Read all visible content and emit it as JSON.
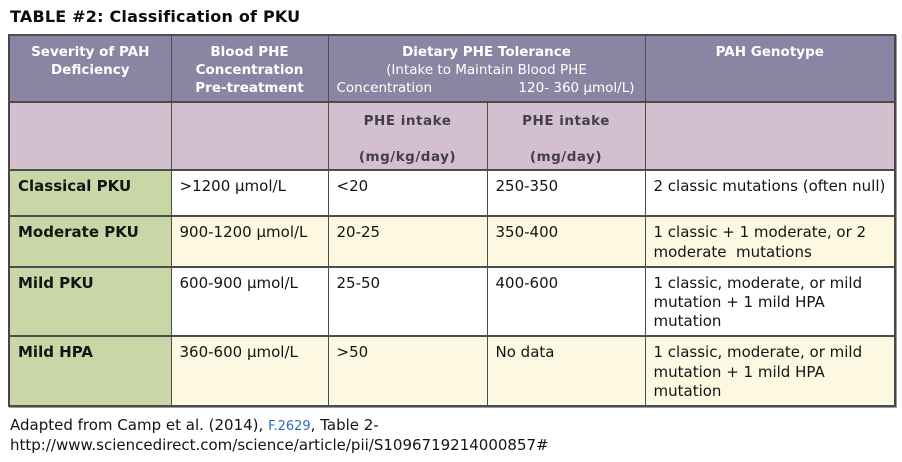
{
  "title": "TABLE #2: Classification of PKU",
  "colors": {
    "header_purple": "#8b85a3",
    "subheader_pink": "#d3c0ce",
    "severity_green": "#c9d7a6",
    "row_cream": "#fdf8e2",
    "row_white": "#ffffff",
    "border": "#4c4c4c",
    "link_blue": "#2e6fb7"
  },
  "table": {
    "header": {
      "severity": "Severity of PAH Deficiency",
      "blood_phe": "Blood PHE Concentration Pre-treatment",
      "dietary_title": "Dietary PHE Tolerance",
      "dietary_line2": "(Intake to Maintain Blood PHE",
      "dietary_line3_left": "Concentration",
      "dietary_line3_right": "120- 360 μmol/L)",
      "genotype": "PAH Genotype"
    },
    "subheader": {
      "intake_label_1": "PHE intake",
      "unit_1": "(mg/kg/day)",
      "intake_label_2": "PHE intake",
      "unit_2": "(mg/day)"
    },
    "rows": [
      {
        "severity": "Classical PKU",
        "blood_phe": ">1200 μmol/L",
        "intake_mg_kg_day": "<20",
        "intake_mg_day": "250-350",
        "genotype": "2 classic mutations (often null)"
      },
      {
        "severity": "Moderate PKU",
        "blood_phe": "900-1200 μmol/L",
        "intake_mg_kg_day": "20-25",
        "intake_mg_day": "350-400",
        "genotype": "1 classic + 1 moderate, or 2 moderate  mutations"
      },
      {
        "severity": "Mild PKU",
        "blood_phe": "600-900 μmol/L",
        "intake_mg_kg_day": "25-50",
        "intake_mg_day": "400-600",
        "genotype": "1 classic, moderate, or mild mutation + 1 mild HPA mutation"
      },
      {
        "severity": "Mild HPA",
        "blood_phe": "360-600 μmol/L",
        "intake_mg_kg_day": ">50",
        "intake_mg_day": "No data",
        "genotype": "1 classic, moderate, or mild mutation + 1 mild HPA mutation"
      }
    ]
  },
  "footer": {
    "line1_prefix": "Adapted from Camp et al. (2014), ",
    "link_text": "F.2629",
    "line1_suffix": ", Table 2-",
    "source_url": "http://www.sciencedirect.com/science/article/pii/S1096719214000857#"
  }
}
